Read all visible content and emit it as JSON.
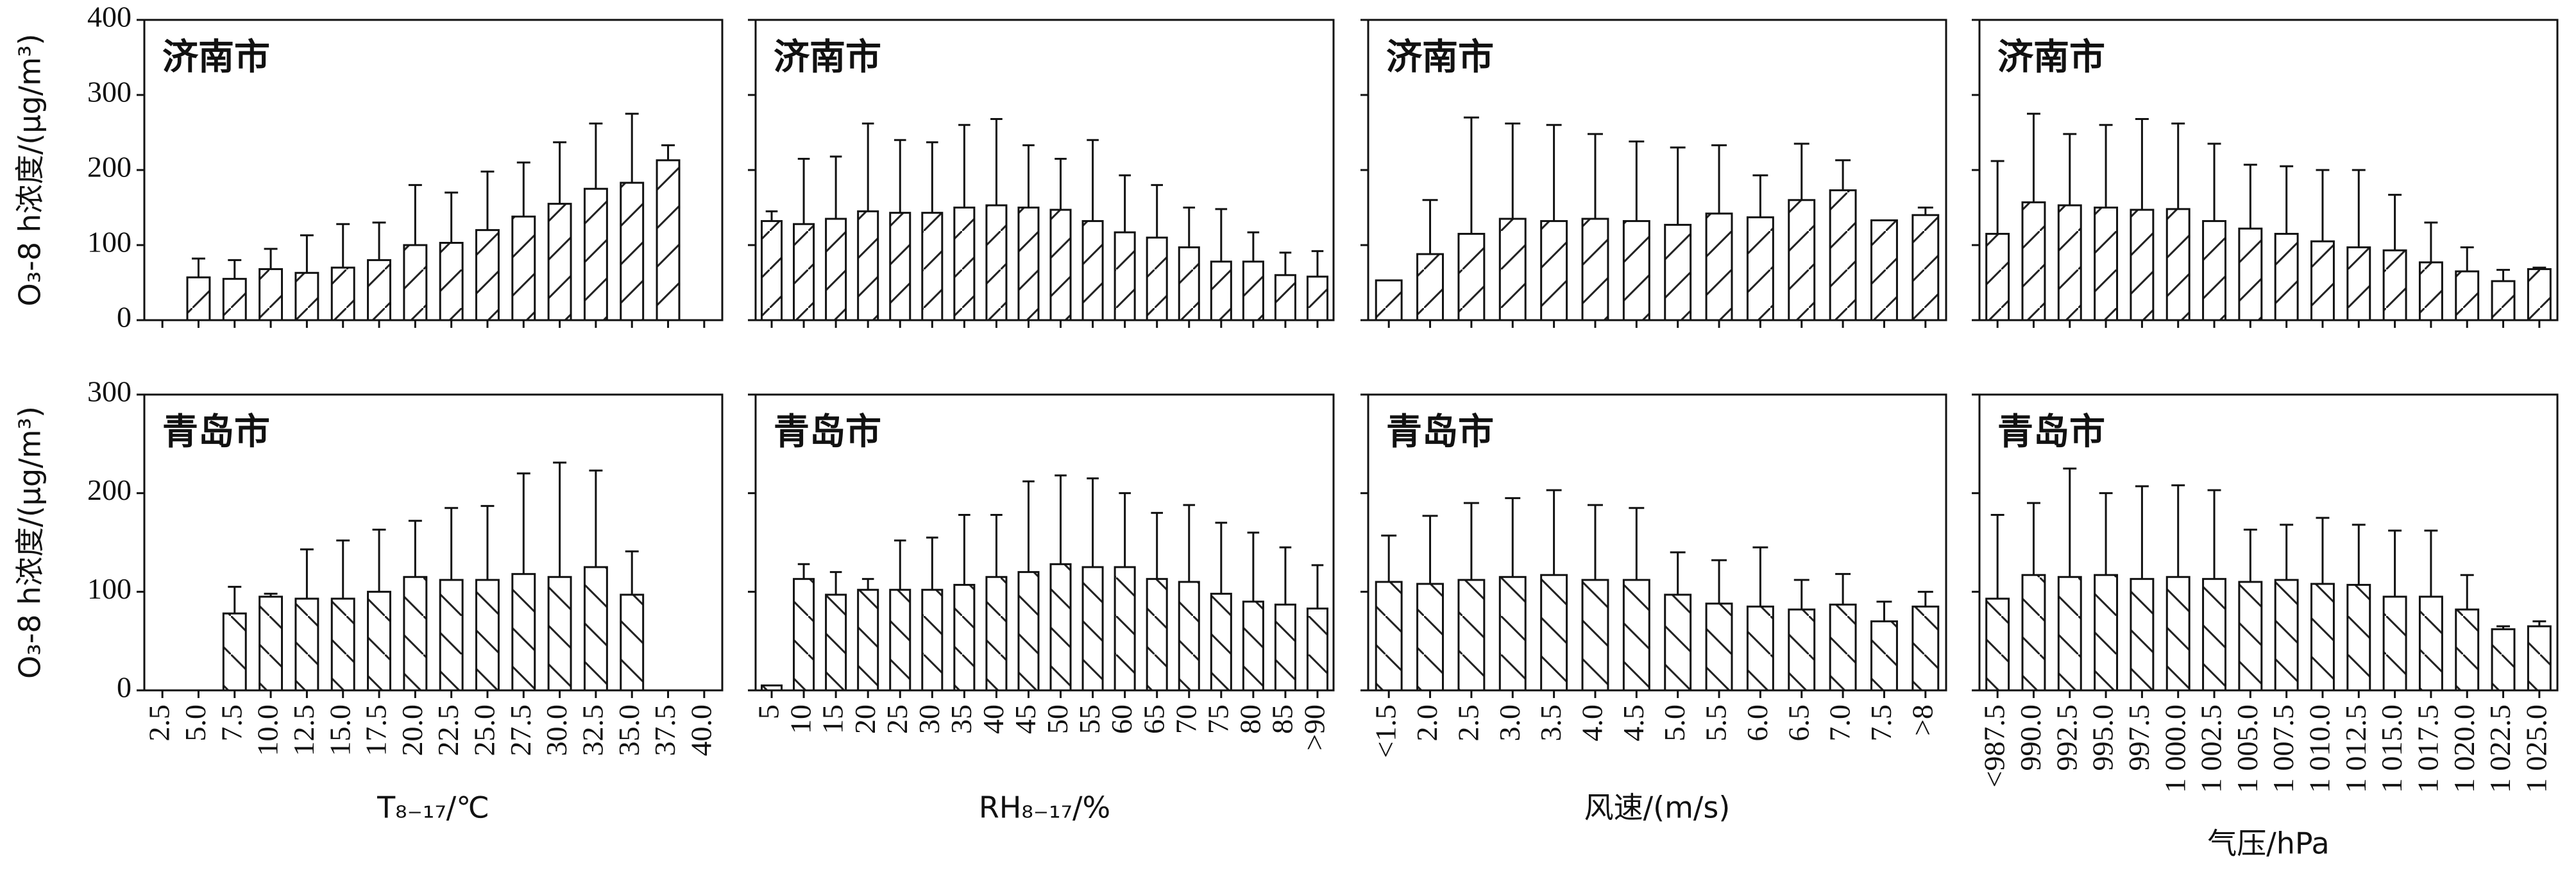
{
  "chart_data": [
    {
      "type": "bar",
      "label": "济南市",
      "ylabel": "O₃-8 h浓度/(μg/m³)",
      "ylim": [
        0,
        400
      ],
      "yticks": [
        0,
        100,
        200,
        300,
        400
      ],
      "values": [
        null,
        57,
        55,
        68,
        63,
        70,
        80,
        100,
        103,
        120,
        138,
        155,
        175,
        183,
        213,
        null
      ],
      "errors": [
        null,
        25,
        25,
        27,
        50,
        58,
        50,
        80,
        67,
        78,
        72,
        82,
        87,
        92,
        20,
        null
      ]
    },
    {
      "type": "bar",
      "label": "济南市",
      "ylim": [
        0,
        400
      ],
      "yticks": [
        0,
        100,
        200,
        300,
        400
      ],
      "values": [
        132,
        128,
        135,
        145,
        143,
        143,
        150,
        153,
        150,
        147,
        132,
        117,
        110,
        97,
        78,
        78,
        60,
        58
      ],
      "errors": [
        13,
        87,
        83,
        117,
        97,
        94,
        110,
        115,
        83,
        68,
        108,
        76,
        70,
        53,
        70,
        39,
        30,
        34
      ]
    },
    {
      "type": "bar",
      "label": "济南市",
      "ylim": [
        0,
        400
      ],
      "yticks": [
        0,
        100,
        200,
        300,
        400
      ],
      "values": [
        53,
        88,
        115,
        135,
        132,
        135,
        132,
        127,
        142,
        137,
        160,
        173,
        133,
        140
      ],
      "errors": [
        0,
        72,
        155,
        127,
        128,
        113,
        106,
        103,
        91,
        56,
        75,
        40,
        0,
        10
      ]
    },
    {
      "type": "bar",
      "label": "济南市",
      "ylim": [
        0,
        400
      ],
      "yticks": [
        0,
        100,
        200,
        300,
        400
      ],
      "values": [
        115,
        157,
        153,
        150,
        147,
        148,
        132,
        122,
        115,
        105,
        97,
        93,
        77,
        65,
        52,
        68
      ],
      "errors": [
        97,
        118,
        95,
        110,
        121,
        114,
        103,
        85,
        90,
        95,
        103,
        74,
        53,
        32,
        15,
        2
      ]
    },
    {
      "type": "bar",
      "label": "青岛市",
      "ylabel": "O₃-8 h浓度/(μg/m³)",
      "ylim": [
        0,
        300
      ],
      "yticks": [
        0,
        100,
        200,
        300
      ],
      "xlabel": "T₈₋₁₇/℃",
      "categories": [
        "2.5",
        "5.0",
        "7.5",
        "10.0",
        "12.5",
        "15.0",
        "17.5",
        "20.0",
        "22.5",
        "25.0",
        "27.5",
        "30.0",
        "32.5",
        "35.0",
        "37.5",
        "40.0"
      ],
      "values": [
        null,
        null,
        78,
        95,
        93,
        93,
        100,
        115,
        112,
        112,
        118,
        115,
        125,
        97,
        null,
        null
      ],
      "errors": [
        null,
        null,
        27,
        3,
        50,
        59,
        63,
        57,
        73,
        75,
        102,
        116,
        98,
        44,
        null,
        null
      ]
    },
    {
      "type": "bar",
      "label": "青岛市",
      "ylim": [
        0,
        300
      ],
      "yticks": [
        0,
        100,
        200,
        300
      ],
      "xlabel": "RH₈₋₁₇/%",
      "categories": [
        "5",
        "10",
        "15",
        "20",
        "25",
        "30",
        "35",
        "40",
        "45",
        "50",
        "55",
        "60",
        "65",
        "70",
        "75",
        "80",
        "85",
        ">90"
      ],
      "values": [
        5,
        113,
        97,
        102,
        102,
        102,
        107,
        115,
        120,
        128,
        125,
        125,
        113,
        110,
        98,
        90,
        87,
        83
      ],
      "errors": [
        0,
        15,
        23,
        11,
        50,
        53,
        71,
        63,
        92,
        90,
        90,
        75,
        67,
        78,
        72,
        70,
        58,
        44
      ]
    },
    {
      "type": "bar",
      "label": "青岛市",
      "ylim": [
        0,
        300
      ],
      "yticks": [
        0,
        100,
        200,
        300
      ],
      "xlabel": "风速/(m/s)",
      "categories": [
        "<1.5",
        "2.0",
        "2.5",
        "3.0",
        "3.5",
        "4.0",
        "4.5",
        "5.0",
        "5.5",
        "6.0",
        "6.5",
        "7.0",
        "7.5",
        ">8"
      ],
      "values": [
        110,
        108,
        112,
        115,
        117,
        112,
        112,
        97,
        88,
        85,
        82,
        87,
        70,
        85
      ],
      "errors": [
        47,
        69,
        78,
        80,
        86,
        76,
        73,
        43,
        44,
        60,
        30,
        31,
        20,
        15
      ]
    },
    {
      "type": "bar",
      "label": "青岛市",
      "ylim": [
        0,
        300
      ],
      "yticks": [
        0,
        100,
        200,
        300
      ],
      "xlabel": "气压/hPa",
      "categories": [
        "<987.5",
        "990.0",
        "992.5",
        "995.0",
        "997.5",
        "1 000.0",
        "1 002.5",
        "1 005.0",
        "1 007.5",
        "1 010.0",
        "1 012.5",
        "1 015.0",
        "1 017.5",
        "1 020.0",
        "1 022.5",
        "1 025.0"
      ],
      "values": [
        93,
        117,
        115,
        117,
        113,
        115,
        113,
        110,
        112,
        108,
        107,
        95,
        95,
        82,
        62,
        65
      ],
      "errors": [
        85,
        73,
        110,
        83,
        94,
        93,
        90,
        53,
        56,
        67,
        61,
        67,
        67,
        35,
        3,
        5
      ]
    }
  ]
}
